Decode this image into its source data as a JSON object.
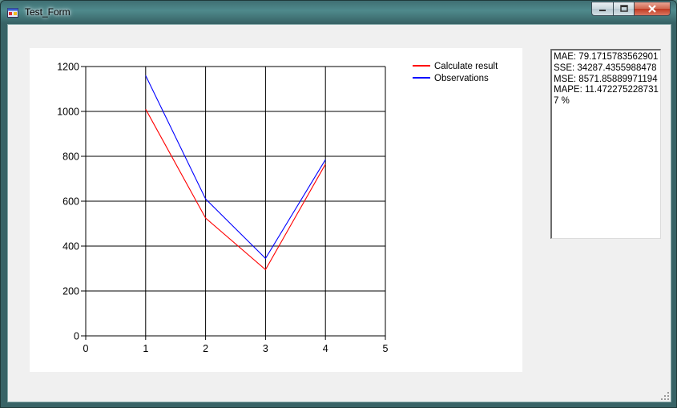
{
  "window": {
    "title": "Test_Form"
  },
  "results": {
    "lines": [
      "MAE: 79.1715783562901",
      "SSE: 34287.4355988478",
      "MSE: 8571.85889971194",
      "MAPE: 11.4722752287317 %"
    ]
  },
  "chart_data": {
    "type": "line",
    "x": [
      1,
      2,
      3,
      4
    ],
    "xlim": [
      0,
      5
    ],
    "ylim": [
      0,
      1200
    ],
    "xticks": [
      "0",
      "1",
      "2",
      "3",
      "4",
      "5"
    ],
    "yticks": [
      "0",
      "200",
      "400",
      "600",
      "800",
      "1000",
      "1200"
    ],
    "grid": true,
    "legend_position": "top-right",
    "series": [
      {
        "name": "Calculate result",
        "color": "#ff0000",
        "values": [
          1010,
          525,
          295,
          765
        ]
      },
      {
        "name": "Observations",
        "color": "#0000ff",
        "values": [
          1160,
          610,
          345,
          785
        ]
      }
    ]
  }
}
